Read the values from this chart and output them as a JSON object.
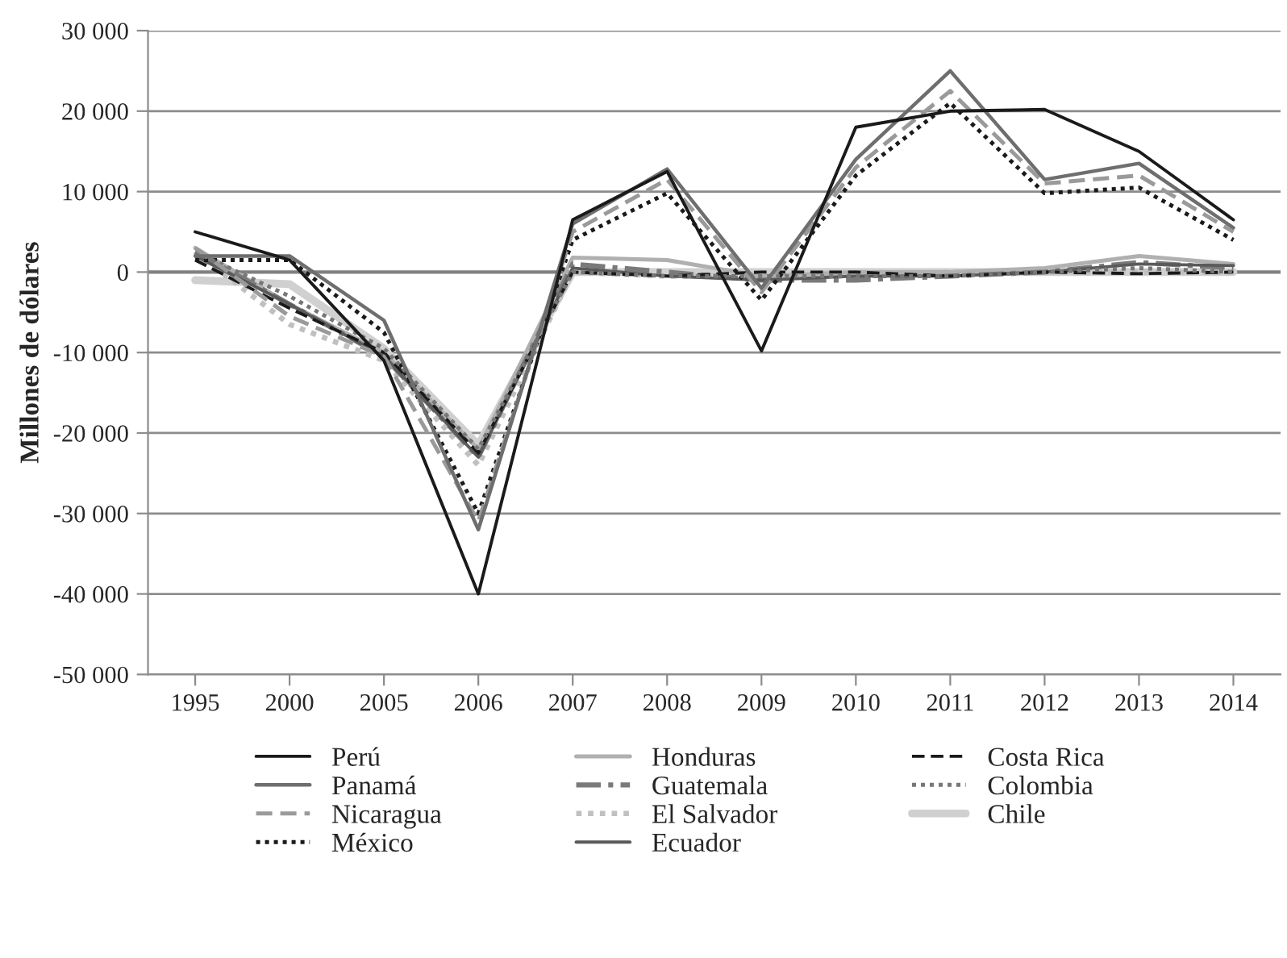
{
  "chart_data": {
    "type": "line",
    "ylabel": "Millones de dólares",
    "categories": [
      "1995",
      "2000",
      "2005",
      "2006",
      "2007",
      "2008",
      "2009",
      "2010",
      "2011",
      "2012",
      "2013",
      "2014"
    ],
    "ylim": [
      -50000,
      30000
    ],
    "yticks": [
      {
        "value": -50000,
        "label": "-50 000"
      },
      {
        "value": -40000,
        "label": "-40 000"
      },
      {
        "value": -30000,
        "label": "-30 000"
      },
      {
        "value": -20000,
        "label": "-20 000"
      },
      {
        "value": -10000,
        "label": "-10 000"
      },
      0,
      {
        "value": 10000,
        "label": "10 000"
      },
      {
        "value": 20000,
        "label": "20 000"
      },
      {
        "value": 30000,
        "label": "30 000"
      }
    ],
    "grid": "y",
    "legend": "bottom",
    "marker": "none",
    "ref_lines": [
      {
        "axis": "y",
        "value": 0,
        "color": "#808080"
      }
    ],
    "series": [
      {
        "name": "Perú",
        "color": "#1a1a1a",
        "line_style": "solid",
        "values": [
          5000,
          1500,
          -11000,
          -40000,
          6500,
          12500,
          -9800,
          18000,
          20000,
          20200,
          15000,
          6500
        ]
      },
      {
        "name": "Panamá",
        "color": "#6e6e6e",
        "line_style": "solid",
        "values": [
          2000,
          2000,
          -6000,
          -32000,
          6000,
          12800,
          -2000,
          14000,
          25000,
          11500,
          13500,
          5500
        ]
      },
      {
        "name": "Nicaragua",
        "color": "#9a9a9a",
        "line_style": "dashed",
        "values": [
          3000,
          -5500,
          -10500,
          -31000,
          5000,
          11500,
          -2500,
          13000,
          22500,
          11000,
          12000,
          5000
        ]
      },
      {
        "name": "México",
        "color": "#1a1a1a",
        "line_style": "dotted",
        "values": [
          1500,
          1500,
          -7500,
          -30000,
          4000,
          9800,
          -3500,
          12000,
          21000,
          9800,
          10500,
          4000
        ]
      },
      {
        "name": "Honduras",
        "color": "#b0b0b0",
        "line_style": "solid",
        "values": [
          3000,
          -4000,
          -10000,
          -22000,
          1800,
          1500,
          -500,
          0,
          0,
          500,
          2000,
          1000
        ]
      },
      {
        "name": "Guatemala",
        "color": "#7a7a7a",
        "line_style": "dashdot",
        "values": [
          2500,
          -4000,
          -10500,
          -23000,
          1000,
          0,
          -1000,
          -1000,
          -500,
          0,
          1200,
          500
        ]
      },
      {
        "name": "El Salvador",
        "color": "#c0c0c0",
        "line_style": "dotted",
        "values": [
          2500,
          -6500,
          -11000,
          -24000,
          0,
          -500,
          -500,
          -500,
          0,
          0,
          0,
          0
        ]
      },
      {
        "name": "Ecuador",
        "color": "#5a5a5a",
        "line_style": "solid",
        "values": [
          2000,
          -4000,
          -10500,
          -23000,
          500,
          -500,
          -1000,
          -500,
          -500,
          0,
          1000,
          800
        ]
      },
      {
        "name": "Costa Rica",
        "color": "#1a1a1a",
        "line_style": "dashed",
        "values": [
          1500,
          -4500,
          -10000,
          -22500,
          0,
          -500,
          0,
          0,
          -500,
          0,
          -200,
          0
        ]
      },
      {
        "name": "Colombia",
        "color": "#777777",
        "line_style": "dotted",
        "values": [
          2500,
          -3000,
          -9500,
          -22000,
          0,
          -500,
          -500,
          -500,
          -500,
          0,
          500,
          0
        ]
      },
      {
        "name": "Chile",
        "color": "#d0d0d0",
        "line_style": "solid",
        "values": [
          -1000,
          -1500,
          -9500,
          -21500,
          0,
          0,
          0,
          0,
          0,
          0,
          0,
          0
        ]
      }
    ]
  }
}
